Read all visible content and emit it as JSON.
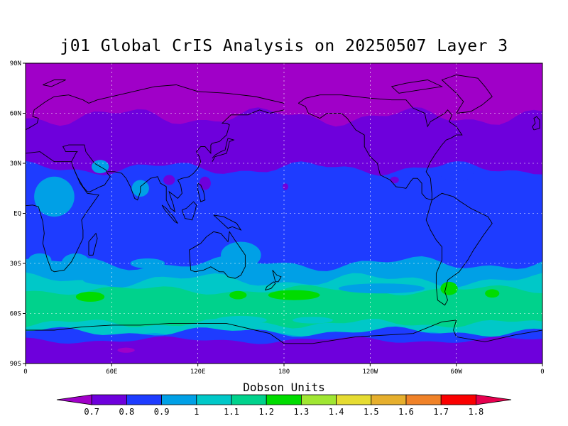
{
  "chart_data": {
    "type": "heatmap",
    "title": "j01 Global CrIS Analysis on 20250507 Layer 3",
    "projection": "cylindrical equidistant",
    "grid": true,
    "x_ticks": [
      "0",
      "60E",
      "120E",
      "180",
      "120W",
      "60W",
      "0"
    ],
    "y_ticks": [
      "90N",
      "60N",
      "30N",
      "EQ",
      "30S",
      "60S",
      "90S"
    ],
    "xlim": [
      0,
      360
    ],
    "ylim": [
      -90,
      90
    ],
    "colorbar": {
      "title": "Dobson Units",
      "ticks": [
        "0.7",
        "0.8",
        "0.9",
        "1",
        "1.1",
        "1.2",
        "1.3",
        "1.4",
        "1.5",
        "1.6",
        "1.7",
        "1.8"
      ],
      "colors": [
        "#a000c8",
        "#6e00dc",
        "#1e3cff",
        "#00a0e6",
        "#00c8c8",
        "#00d28c",
        "#00dc00",
        "#a0e632",
        "#e6dc32",
        "#e6af2d",
        "#f08228",
        "#fa0000",
        "#e6004f"
      ]
    },
    "zonal_bands": [
      {
        "lat": [
          60,
          90
        ],
        "value_range": "<0.7"
      },
      {
        "lat": [
          25,
          60
        ],
        "value_range": "0.7-0.8"
      },
      {
        "lat": [
          -35,
          25
        ],
        "value_range": "0.8-0.9"
      },
      {
        "lat": [
          -45,
          -35
        ],
        "value_range": "0.9-1.0"
      },
      {
        "lat": [
          -60,
          -45
        ],
        "value_range": "1.0-1.2"
      },
      {
        "lat": [
          -75,
          -60
        ],
        "value_range": "0.9-1.1"
      },
      {
        "lat": [
          -90,
          -75
        ],
        "value_range": "0.8-0.9"
      }
    ]
  }
}
